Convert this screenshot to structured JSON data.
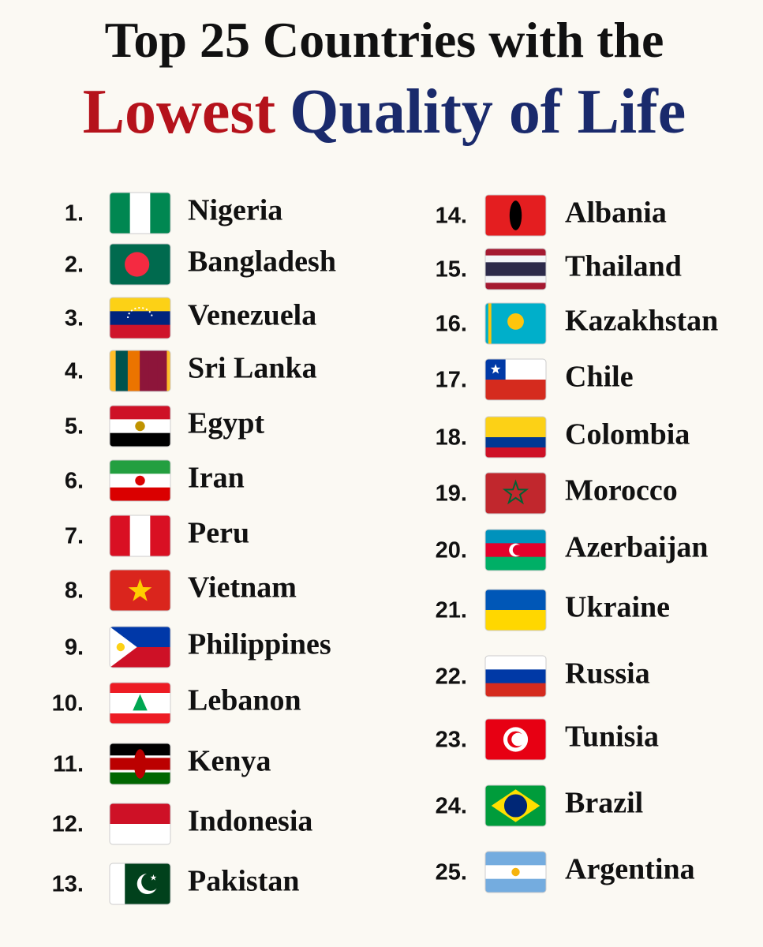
{
  "header": {
    "title_line1": "Top 25 Countries with the",
    "title_red": "Lowest",
    "title_blue": "Quality of Life"
  },
  "items": [
    {
      "rank": "1.",
      "country": "Nigeria"
    },
    {
      "rank": "2.",
      "country": "Bangladesh"
    },
    {
      "rank": "3.",
      "country": "Venezuela"
    },
    {
      "rank": "4.",
      "country": "Sri Lanka"
    },
    {
      "rank": "5.",
      "country": "Egypt"
    },
    {
      "rank": "6.",
      "country": "Iran"
    },
    {
      "rank": "7.",
      "country": "Peru"
    },
    {
      "rank": "8.",
      "country": "Vietnam"
    },
    {
      "rank": "9.",
      "country": "Philippines"
    },
    {
      "rank": "10.",
      "country": "Lebanon"
    },
    {
      "rank": "11.",
      "country": "Kenya"
    },
    {
      "rank": "12.",
      "country": "Indonesia"
    },
    {
      "rank": "13.",
      "country": "Pakistan"
    },
    {
      "rank": "14.",
      "country": "Albania"
    },
    {
      "rank": "15.",
      "country": "Thailand"
    },
    {
      "rank": "16.",
      "country": "Kazakhstan"
    },
    {
      "rank": "17.",
      "country": "Chile"
    },
    {
      "rank": "18.",
      "country": "Colombia"
    },
    {
      "rank": "19.",
      "country": "Morocco"
    },
    {
      "rank": "20.",
      "country": "Azerbaijan"
    },
    {
      "rank": "21.",
      "country": "Ukraine"
    },
    {
      "rank": "22.",
      "country": "Russia"
    },
    {
      "rank": "23.",
      "country": "Tunisia"
    },
    {
      "rank": "24.",
      "country": "Brazil"
    },
    {
      "rank": "25.",
      "country": "Argentina"
    }
  ]
}
